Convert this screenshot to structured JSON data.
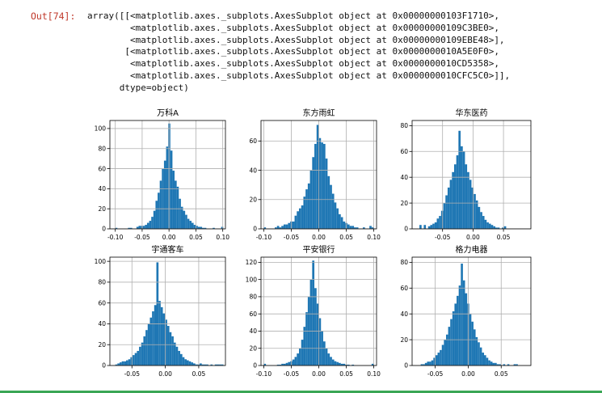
{
  "output_cell": {
    "prompt": "Out[74]:",
    "lines": [
      "array([[<matplotlib.axes._subplots.AxesSubplot object at 0x00000000103F1710>,",
      "        <matplotlib.axes._subplots.AxesSubplot object at 0x00000000109C3BE0>,",
      "        <matplotlib.axes._subplots.AxesSubplot object at 0x00000000109EBE48>],",
      "       [<matplotlib.axes._subplots.AxesSubplot object at 0x0000000010A5E0F0>,",
      "        <matplotlib.axes._subplots.AxesSubplot object at 0x0000000010CD5358>,",
      "        <matplotlib.axes._subplots.AxesSubplot object at 0x0000000010CFC5C0>]],",
      "      dtype=object)"
    ]
  },
  "colors": {
    "bar": "#1f77b4",
    "grid": "#b0b0b0",
    "axis": "#000000"
  },
  "chart_data": [
    {
      "type": "bar",
      "title": "万科A",
      "grid": true,
      "xlim": [
        -0.11,
        0.105
      ],
      "ylim": [
        0,
        108
      ],
      "xticks": [
        -0.1,
        -0.05,
        0.0,
        0.05,
        0.1
      ],
      "xtick_labels": [
        "-0.10",
        "-0.05",
        "0.00",
        "0.05",
        "0.10"
      ],
      "yticks": [
        0,
        20,
        40,
        60,
        80,
        100
      ],
      "ytick_labels": [
        "0",
        "20",
        "40",
        "60",
        "80",
        "100"
      ],
      "bin_start": -0.1,
      "bin_width": 0.00394,
      "values": [
        1,
        0,
        0,
        0,
        0,
        0,
        1,
        1,
        0,
        0,
        2,
        3,
        3,
        3,
        4,
        6,
        8,
        12,
        18,
        28,
        36,
        48,
        60,
        68,
        82,
        105,
        78,
        58,
        48,
        42,
        30,
        22,
        18,
        14,
        10,
        8,
        6,
        4,
        3,
        2,
        2,
        1,
        1,
        0,
        0,
        0,
        1,
        0,
        0,
        0,
        2
      ]
    },
    {
      "type": "bar",
      "title": "东方雨虹",
      "grid": true,
      "xlim": [
        -0.105,
        0.105
      ],
      "ylim": [
        0,
        74
      ],
      "xticks": [
        -0.1,
        -0.05,
        0.0,
        0.05,
        0.1
      ],
      "xtick_labels": [
        "-0.10",
        "-0.05",
        "0.00",
        "0.05",
        "0.10"
      ],
      "yticks": [
        0,
        20,
        40,
        60
      ],
      "ytick_labels": [
        "0",
        "20",
        "40",
        "60"
      ],
      "bin_start": -0.1,
      "bin_width": 0.004,
      "values": [
        1,
        0,
        0,
        0,
        0,
        1,
        2,
        1,
        2,
        3,
        3,
        4,
        5,
        5,
        9,
        12,
        14,
        16,
        22,
        27,
        31,
        40,
        49,
        58,
        71,
        62,
        59,
        58,
        48,
        36,
        30,
        24,
        18,
        14,
        10,
        8,
        5,
        4,
        3,
        2,
        2,
        1,
        1,
        0,
        0,
        1,
        0,
        0,
        2,
        1
      ]
    },
    {
      "type": "bar",
      "title": "华东医药",
      "grid": true,
      "xlim": [
        -0.1,
        0.095
      ],
      "ylim": [
        0,
        84
      ],
      "xticks": [
        -0.05,
        0.0,
        0.05
      ],
      "xtick_labels": [
        "-0.05",
        "0.00",
        "0.05"
      ],
      "yticks": [
        0,
        20,
        40,
        60,
        80
      ],
      "ytick_labels": [
        "0",
        "20",
        "40",
        "60",
        "80"
      ],
      "bin_start": -0.088,
      "bin_width": 0.00356,
      "values": [
        3,
        0,
        3,
        0,
        2,
        3,
        4,
        5,
        8,
        10,
        14,
        20,
        26,
        32,
        38,
        44,
        50,
        57,
        76,
        64,
        60,
        50,
        44,
        38,
        32,
        27,
        22,
        17,
        13,
        10,
        7,
        5,
        4,
        3,
        2,
        1,
        1,
        0,
        1,
        2
      ]
    },
    {
      "type": "bar",
      "title": "宇通客车",
      "grid": true,
      "xlim": [
        -0.083,
        0.09
      ],
      "ylim": [
        0,
        104
      ],
      "xticks": [
        -0.05,
        0.0,
        0.05
      ],
      "xtick_labels": [
        "-0.05",
        "0.00",
        "0.05"
      ],
      "yticks": [
        0,
        20,
        40,
        60,
        80,
        100
      ],
      "ytick_labels": [
        "0",
        "20",
        "40",
        "60",
        "80",
        "100"
      ],
      "bin_start": -0.075,
      "bin_width": 0.00324,
      "values": [
        1,
        2,
        3,
        4,
        4,
        5,
        6,
        8,
        10,
        12,
        14,
        18,
        22,
        28,
        34,
        40,
        46,
        52,
        58,
        99,
        62,
        56,
        50,
        44,
        38,
        32,
        28,
        22,
        18,
        14,
        11,
        8,
        6,
        5,
        4,
        3,
        2,
        1,
        1,
        2,
        1,
        1,
        1,
        0,
        1,
        0,
        1,
        1,
        1,
        1
      ]
    },
    {
      "type": "bar",
      "title": "平安银行",
      "grid": true,
      "xlim": [
        -0.105,
        0.105
      ],
      "ylim": [
        0,
        126
      ],
      "xticks": [
        -0.1,
        -0.05,
        0.0,
        0.05,
        0.1
      ],
      "xtick_labels": [
        "-0.10",
        "-0.05",
        "0.00",
        "0.05",
        "0.10"
      ],
      "yticks": [
        0,
        20,
        40,
        60,
        80,
        100,
        120
      ],
      "ytick_labels": [
        "0",
        "20",
        "40",
        "60",
        "80",
        "100",
        "120"
      ],
      "bin_start": -0.1,
      "bin_width": 0.004,
      "values": [
        2,
        0,
        0,
        0,
        0,
        0,
        1,
        1,
        2,
        2,
        3,
        4,
        5,
        7,
        10,
        14,
        20,
        30,
        45,
        62,
        80,
        100,
        122,
        90,
        72,
        55,
        40,
        28,
        20,
        14,
        10,
        7,
        5,
        4,
        3,
        2,
        2,
        1,
        1,
        0,
        1,
        0,
        0,
        0,
        0,
        0,
        0,
        0,
        0,
        2
      ]
    },
    {
      "type": "bar",
      "title": "格力电器",
      "grid": true,
      "xlim": [
        -0.085,
        0.095
      ],
      "ylim": [
        0,
        84
      ],
      "xticks": [
        -0.05,
        0.0,
        0.05
      ],
      "xtick_labels": [
        "-0.05",
        "0.00",
        "0.05"
      ],
      "yticks": [
        0,
        20,
        40,
        60,
        80
      ],
      "ytick_labels": [
        "0",
        "20",
        "40",
        "60",
        "80"
      ],
      "bin_start": -0.072,
      "bin_width": 0.0032,
      "values": [
        1,
        1,
        2,
        3,
        3,
        4,
        6,
        8,
        10,
        12,
        16,
        20,
        24,
        30,
        36,
        42,
        48,
        54,
        62,
        79,
        66,
        56,
        48,
        40,
        34,
        28,
        22,
        18,
        14,
        10,
        8,
        6,
        4,
        3,
        2,
        2,
        1,
        1,
        0,
        1,
        0,
        1,
        0,
        0,
        1,
        1
      ]
    }
  ]
}
